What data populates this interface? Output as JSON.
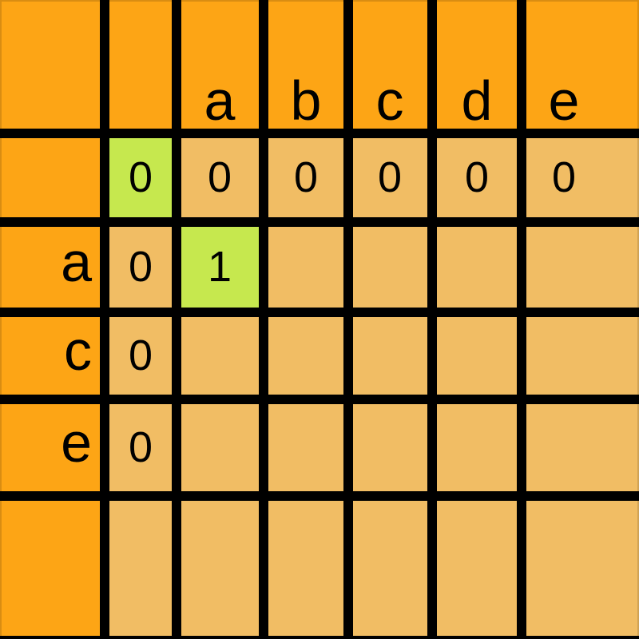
{
  "colors": {
    "orange": "#fda515",
    "tan": "#f1bd64",
    "green": "#c6e84e",
    "line": "#000000",
    "text": "#000000"
  },
  "table": {
    "column_headers": [
      "a",
      "b",
      "c",
      "d",
      "e"
    ],
    "rows": [
      {
        "header": "",
        "values": [
          "0",
          "0",
          "0",
          "0",
          "0",
          "0"
        ],
        "highlight_cols": [
          0
        ]
      },
      {
        "header": "a",
        "values": [
          "0",
          "1",
          "",
          "",
          "",
          ""
        ],
        "highlight_cols": [
          1
        ]
      },
      {
        "header": "c",
        "values": [
          "0",
          "",
          "",
          "",
          "",
          ""
        ],
        "highlight_cols": []
      },
      {
        "header": "e",
        "values": [
          "0",
          "",
          "",
          "",
          "",
          ""
        ],
        "highlight_cols": []
      },
      {
        "header": "",
        "values": [
          "",
          "",
          "",
          "",
          "",
          ""
        ],
        "highlight_cols": []
      }
    ]
  }
}
